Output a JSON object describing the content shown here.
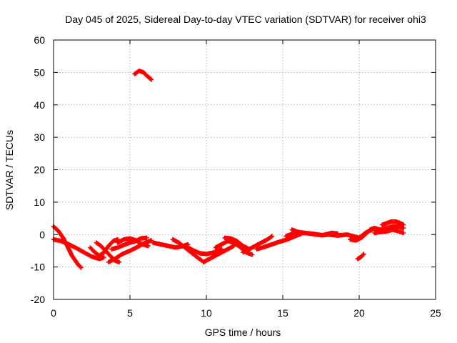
{
  "chart_data": {
    "type": "scatter",
    "title": "Day 045 of 2025, Sidereal Day-to-day VTEC variation (SDTVAR) for receiver ohi3",
    "xlabel": "GPS time / hours",
    "ylabel": "SDTVAR / TECUs",
    "xlim": [
      0,
      25
    ],
    "ylim": [
      -20,
      60
    ],
    "xticks": [
      0,
      5,
      10,
      15,
      20,
      25
    ],
    "yticks": [
      -20,
      -10,
      0,
      10,
      20,
      30,
      40,
      50,
      60
    ],
    "grid": true,
    "marker": "+",
    "series": [
      {
        "name": "SDTVAR",
        "color": "#ff0000",
        "tracks": [
          [
            [
              0.0,
              2.5
            ],
            [
              0.3,
              1.2
            ],
            [
              0.6,
              -0.8
            ],
            [
              0.9,
              -3.5
            ],
            [
              1.2,
              -6.5
            ],
            [
              1.6,
              -9.2
            ],
            [
              1.8,
              -10.2
            ]
          ],
          [
            [
              0.0,
              -1.5
            ],
            [
              0.5,
              -2.0
            ],
            [
              1.0,
              -3.0
            ],
            [
              1.5,
              -4.2
            ],
            [
              2.0,
              -5.5
            ],
            [
              2.5,
              -6.8
            ],
            [
              3.0,
              -7.5
            ],
            [
              3.3,
              -7.0
            ]
          ],
          [
            [
              2.8,
              -2.5
            ],
            [
              3.1,
              -3.5
            ],
            [
              3.4,
              -5.0
            ],
            [
              3.7,
              -6.5
            ],
            [
              4.0,
              -8.0
            ],
            [
              4.3,
              -8.5
            ]
          ],
          [
            [
              2.4,
              -4.0
            ],
            [
              2.7,
              -5.5
            ],
            [
              3.0,
              -6.5
            ],
            [
              3.3,
              -5.5
            ],
            [
              3.6,
              -3.5
            ],
            [
              3.9,
              -2.0
            ],
            [
              4.2,
              -1.5
            ]
          ],
          [
            [
              3.6,
              -8.5
            ],
            [
              4.0,
              -7.5
            ],
            [
              4.5,
              -6.0
            ],
            [
              5.0,
              -5.0
            ],
            [
              5.5,
              -3.8
            ],
            [
              6.0,
              -2.5
            ],
            [
              6.4,
              -1.8
            ]
          ],
          [
            [
              4.2,
              -2.5
            ],
            [
              4.6,
              -1.5
            ],
            [
              5.0,
              -1.2
            ],
            [
              5.4,
              -1.8
            ],
            [
              5.8,
              -3.0
            ],
            [
              6.2,
              -3.5
            ]
          ],
          [
            [
              3.8,
              -4.5
            ],
            [
              4.2,
              -4.0
            ],
            [
              4.6,
              -3.2
            ],
            [
              5.0,
              -2.5
            ],
            [
              5.4,
              -2.0
            ],
            [
              5.7,
              -1.2
            ],
            [
              6.1,
              -1.0
            ]
          ],
          [
            [
              6.5,
              -2.5
            ],
            [
              7.0,
              -3.0
            ],
            [
              7.5,
              -3.5
            ],
            [
              8.0,
              -4.0
            ],
            [
              8.5,
              -3.5
            ],
            [
              8.8,
              -3.0
            ]
          ],
          [
            [
              7.8,
              -1.5
            ],
            [
              8.2,
              -2.5
            ],
            [
              8.6,
              -4.0
            ],
            [
              9.0,
              -5.5
            ],
            [
              9.4,
              -7.0
            ],
            [
              9.7,
              -8.0
            ]
          ],
          [
            [
              8.8,
              -4.0
            ],
            [
              9.2,
              -5.0
            ],
            [
              9.6,
              -5.8
            ],
            [
              10.0,
              -6.0
            ],
            [
              10.5,
              -5.5
            ],
            [
              11.0,
              -4.5
            ]
          ],
          [
            [
              9.8,
              -8.5
            ],
            [
              10.2,
              -7.5
            ],
            [
              10.6,
              -6.5
            ],
            [
              11.0,
              -5.5
            ],
            [
              11.4,
              -4.5
            ],
            [
              11.8,
              -3.5
            ]
          ],
          [
            [
              10.6,
              -4.0
            ],
            [
              11.0,
              -3.0
            ],
            [
              11.4,
              -2.0
            ],
            [
              11.8,
              -2.5
            ],
            [
              12.2,
              -3.8
            ],
            [
              12.6,
              -5.5
            ],
            [
              13.0,
              -6.2
            ]
          ],
          [
            [
              11.2,
              -1.0
            ],
            [
              11.6,
              -1.2
            ],
            [
              12.0,
              -2.0
            ],
            [
              12.4,
              -3.5
            ],
            [
              12.8,
              -4.5
            ]
          ],
          [
            [
              12.4,
              -5.5
            ],
            [
              12.8,
              -4.5
            ],
            [
              13.2,
              -3.5
            ],
            [
              13.6,
              -2.5
            ],
            [
              14.0,
              -1.5
            ],
            [
              14.3,
              -0.5
            ]
          ],
          [
            [
              13.3,
              -4.5
            ],
            [
              13.8,
              -3.8
            ],
            [
              14.3,
              -3.0
            ],
            [
              14.8,
              -2.2
            ],
            [
              15.3,
              -1.5
            ],
            [
              15.8,
              -0.5
            ],
            [
              16.2,
              0.2
            ]
          ],
          [
            [
              15.6,
              1.5
            ],
            [
              16.0,
              0.8
            ],
            [
              16.4,
              0.5
            ],
            [
              16.8,
              0.3
            ],
            [
              17.2,
              0.0
            ],
            [
              17.6,
              -0.2
            ],
            [
              18.0,
              0.0
            ]
          ],
          [
            [
              15.2,
              -0.5
            ],
            [
              15.8,
              0.5
            ],
            [
              16.4,
              0.5
            ],
            [
              17.0,
              0.2
            ],
            [
              17.6,
              -0.2
            ],
            [
              18.2,
              0.5
            ],
            [
              18.6,
              0.3
            ]
          ],
          [
            [
              18.0,
              0.0
            ],
            [
              18.6,
              -0.3
            ],
            [
              19.2,
              0.0
            ],
            [
              19.6,
              -0.5
            ],
            [
              20.0,
              -1.0
            ],
            [
              20.4,
              0.5
            ],
            [
              20.8,
              1.5
            ]
          ],
          [
            [
              19.4,
              -1.5
            ],
            [
              19.8,
              -1.8
            ],
            [
              20.2,
              -0.8
            ],
            [
              20.6,
              1.0
            ],
            [
              21.0,
              1.8
            ]
          ],
          [
            [
              19.9,
              -7.5
            ],
            [
              20.1,
              -7.0
            ],
            [
              20.3,
              -6.0
            ]
          ],
          [
            [
              20.7,
              1.5
            ],
            [
              21.0,
              2.0
            ],
            [
              21.4,
              1.5
            ],
            [
              21.8,
              2.0
            ],
            [
              22.2,
              2.5
            ],
            [
              22.6,
              2.5
            ],
            [
              22.9,
              2.0
            ]
          ],
          [
            [
              21.5,
              3.0
            ],
            [
              21.8,
              3.5
            ],
            [
              22.1,
              4.0
            ],
            [
              22.4,
              4.0
            ],
            [
              22.7,
              3.5
            ],
            [
              22.9,
              3.0
            ]
          ],
          [
            [
              21.0,
              0.5
            ],
            [
              21.4,
              0.8
            ],
            [
              21.8,
              1.0
            ],
            [
              22.2,
              1.5
            ],
            [
              22.6,
              1.0
            ],
            [
              22.9,
              0.5
            ]
          ],
          [
            [
              5.3,
              49.5
            ],
            [
              5.6,
              50.5
            ],
            [
              5.9,
              50.0
            ],
            [
              6.1,
              49.0
            ],
            [
              6.4,
              47.8
            ]
          ]
        ]
      }
    ]
  }
}
